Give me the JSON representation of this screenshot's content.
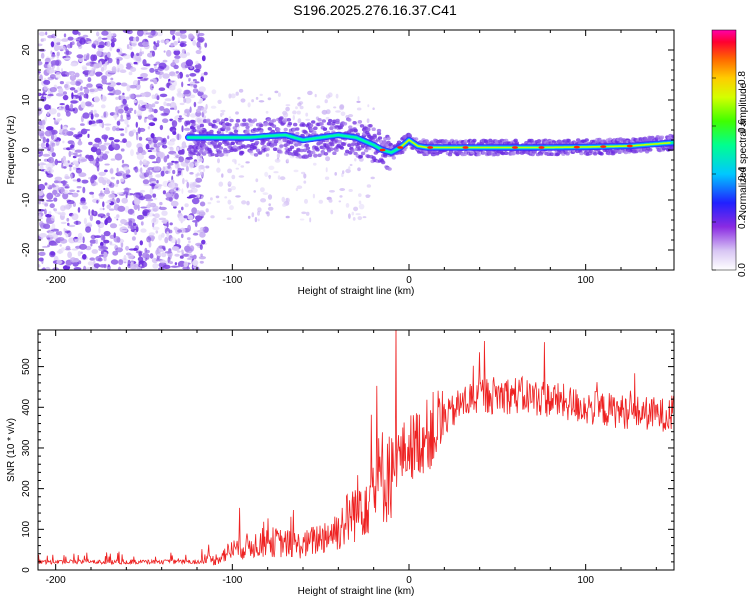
{
  "title": "S196.2025.276.16.37.C41",
  "chart_data": [
    {
      "type": "heatmap",
      "name": "spectrogram",
      "title": "S196.2025.276.16.37.C41",
      "xlabel": "Height of straight line (km)",
      "ylabel": "Frequency (Hz)",
      "xlim": [
        -210,
        150
      ],
      "ylim": [
        -24,
        24
      ],
      "xticks": [
        -200,
        -100,
        0,
        100
      ],
      "xtick_labels": [
        "-200",
        "-100",
        "0",
        "100"
      ],
      "yticks": [
        20,
        10,
        0,
        -10,
        -20
      ],
      "ytick_labels": [
        "20",
        "10",
        "0",
        "-10",
        "-20"
      ],
      "ridge": {
        "x": [
          -125,
          -110,
          -100,
          -90,
          -80,
          -70,
          -60,
          -50,
          -40,
          -30,
          -20,
          -15,
          -10,
          -5,
          0,
          5,
          10,
          20,
          30,
          50,
          75,
          100,
          125,
          150
        ],
        "freq_hz": [
          2.5,
          2.5,
          2.5,
          2.5,
          2.8,
          3.0,
          2.0,
          2.5,
          3.0,
          2.5,
          1.0,
          0,
          -0.5,
          0.5,
          2.0,
          0.8,
          0.5,
          0.5,
          0.5,
          0.5,
          0.5,
          0.6,
          0.8,
          1.5
        ]
      },
      "colorbar": {
        "label": "Normalized spectral amplitude",
        "range": [
          0,
          1
        ],
        "ticks": [
          0.0,
          0.2,
          0.4,
          0.6,
          0.8
        ],
        "tick_labels": [
          "0.0",
          "0.2",
          "0.4",
          "0.6",
          "0.8"
        ]
      }
    },
    {
      "type": "line",
      "name": "snr",
      "xlabel": "Height of straight line (km)",
      "ylabel": "SNR (10 * v/v)",
      "xlim": [
        -210,
        150
      ],
      "ylim": [
        0,
        590
      ],
      "xticks": [
        -200,
        -100,
        0,
        100
      ],
      "xtick_labels": [
        "-200",
        "-100",
        "0",
        "100"
      ],
      "yticks": [
        0,
        100,
        200,
        300,
        400,
        500
      ],
      "ytick_labels": [
        "0",
        "100",
        "200",
        "300",
        "400",
        "500"
      ],
      "color": "#ee2222",
      "envelope": {
        "x": [
          -210,
          -120,
          -110,
          -100,
          -80,
          -60,
          -40,
          -30,
          -20,
          -10,
          0,
          10,
          20,
          30,
          40,
          60,
          80,
          100,
          120,
          150
        ],
        "y": [
          20,
          20,
          25,
          50,
          70,
          60,
          100,
          150,
          200,
          260,
          300,
          330,
          370,
          410,
          430,
          430,
          420,
          400,
          390,
          380
        ]
      }
    }
  ]
}
